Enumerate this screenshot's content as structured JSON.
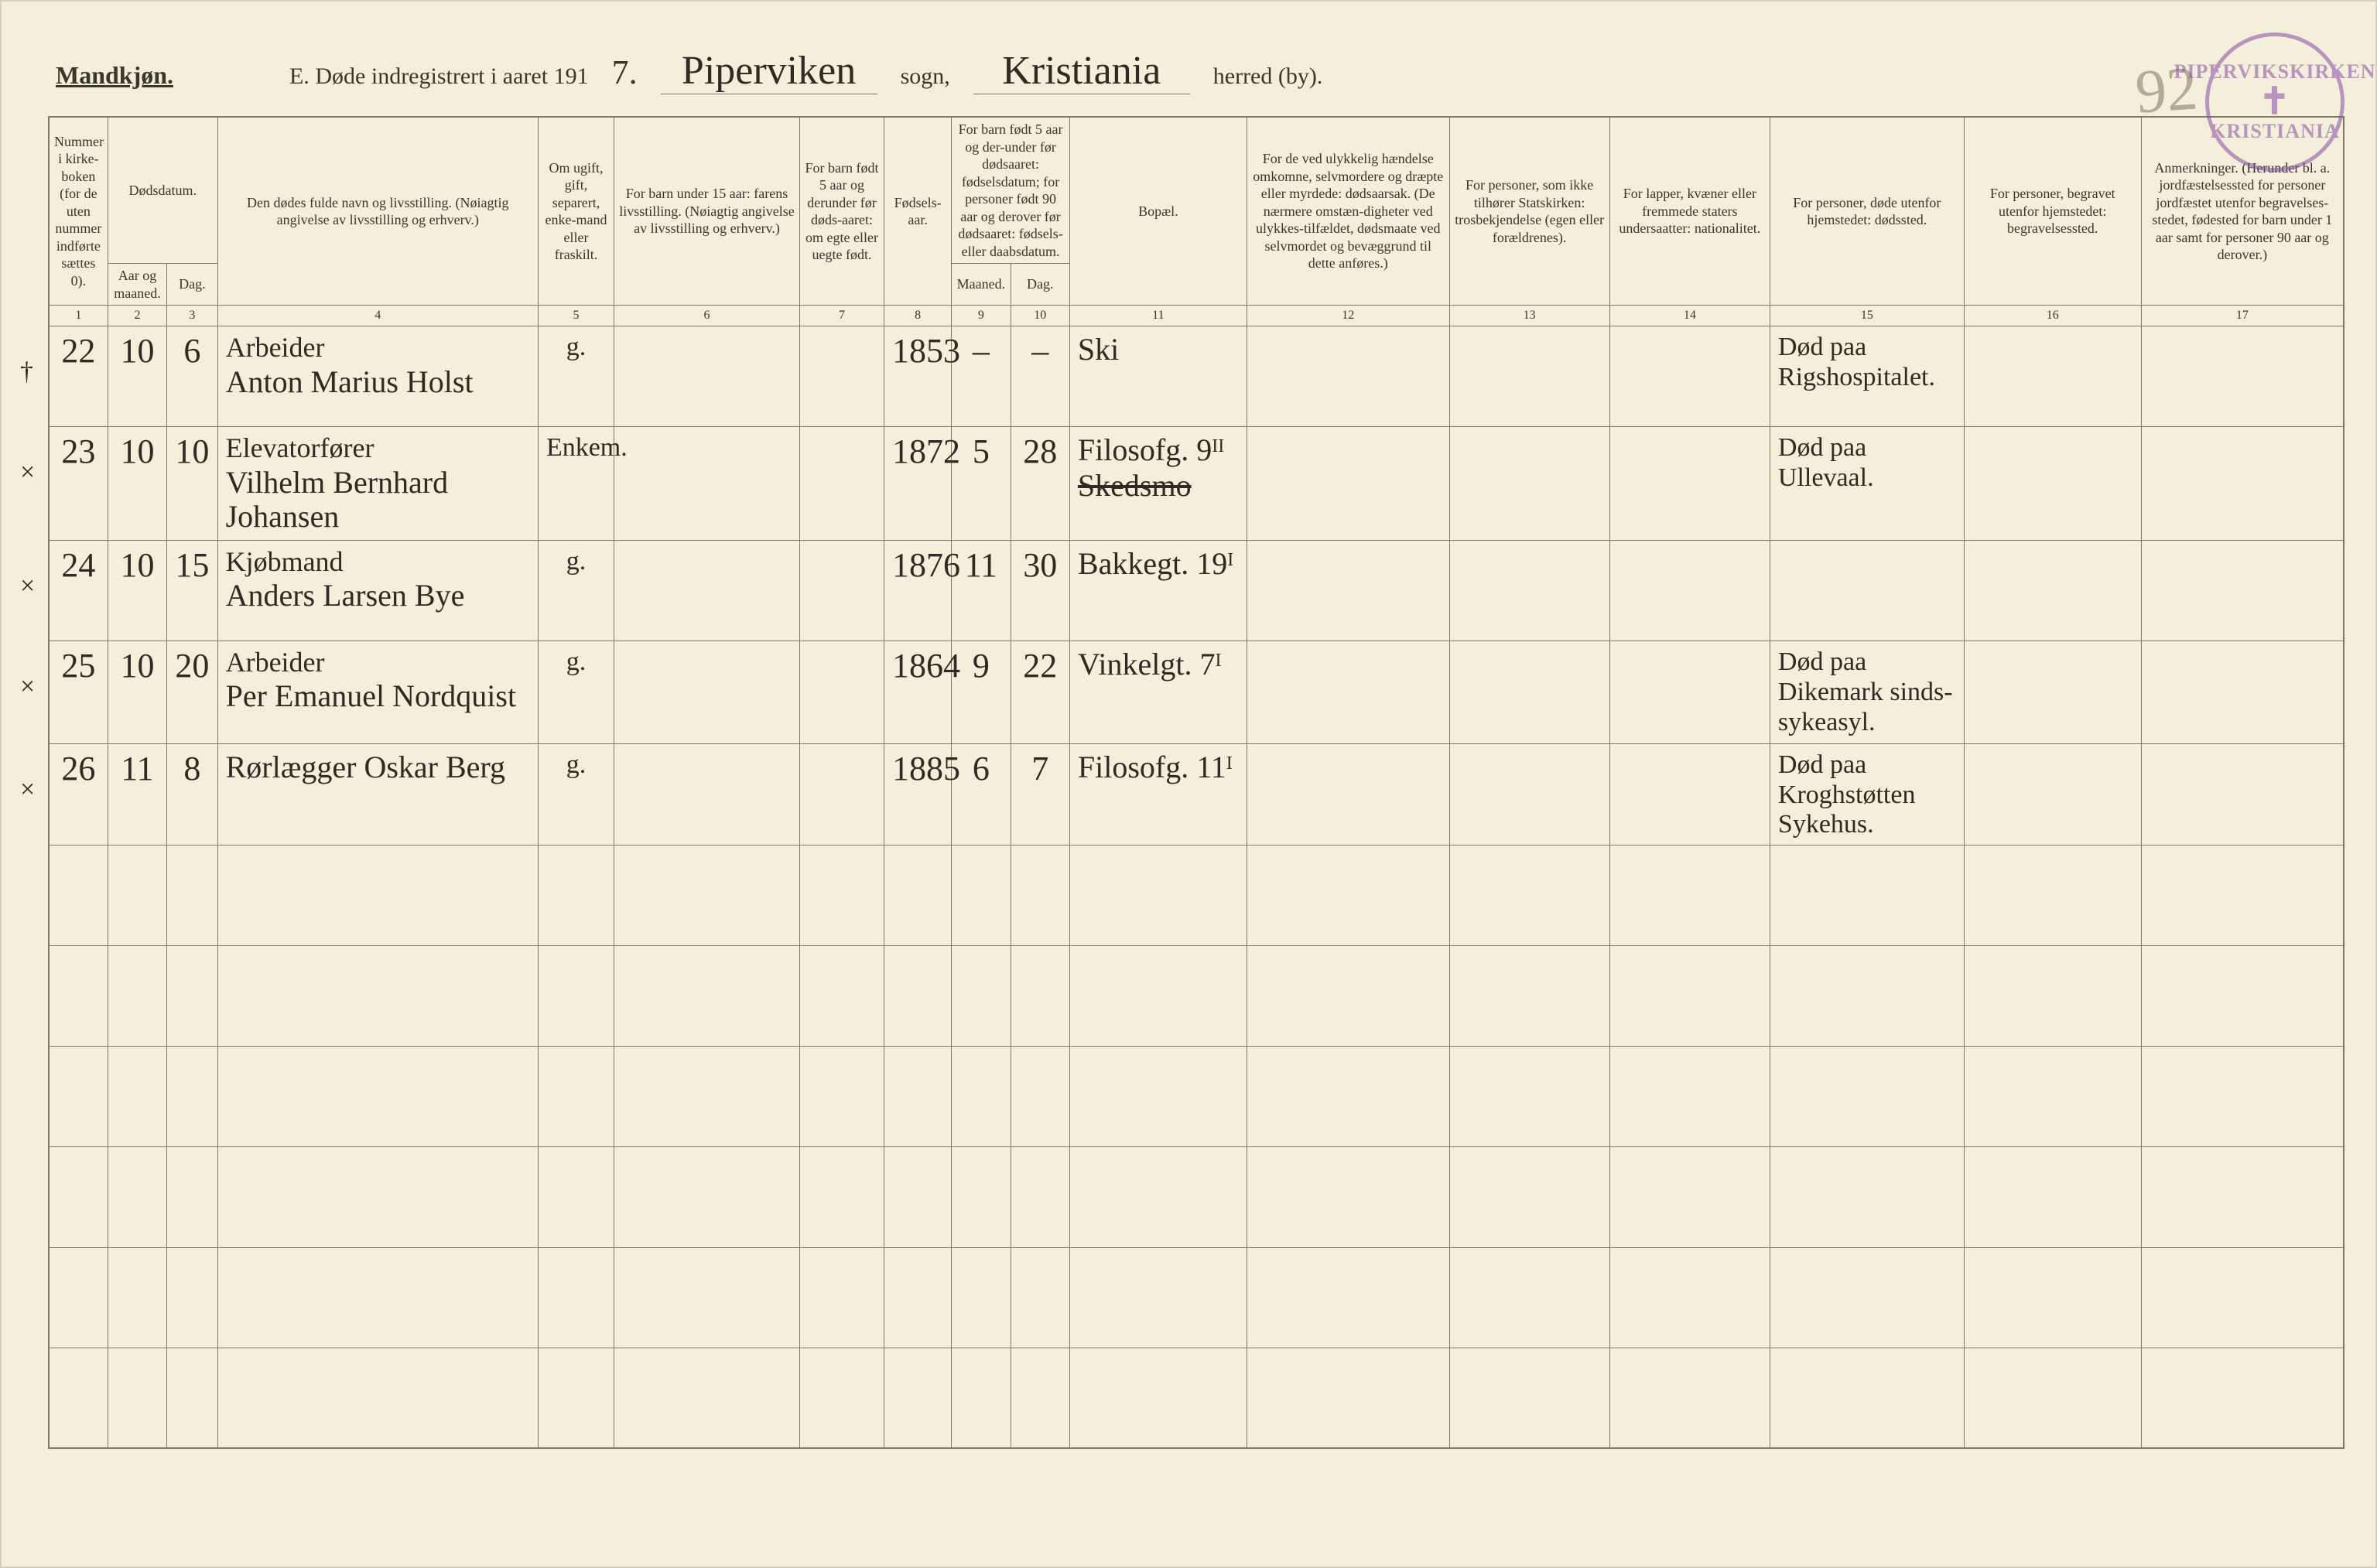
{
  "page_number_handwritten": "92",
  "stamp": {
    "top": "PIPERVIKSKIRKEN",
    "bottom": "KRISTIANIA"
  },
  "header": {
    "gender_label": "Mandkjøn.",
    "title_prefix": "E.   Døde indregistrert i aaret 191",
    "year_suffix": "7.",
    "parish_value": "Piperviken",
    "parish_label": "sogn,",
    "district_value": "Kristiania",
    "district_label": "herred (by)."
  },
  "columns": {
    "c1": "Nummer i kirke-boken (for de uten nummer indførte sættes 0).",
    "c2a": "Dødsdatum.",
    "c2b": "Aar og maaned.",
    "c3": "Dag.",
    "c4": "Den dødes fulde navn og livsstilling.\n(Nøiagtig angivelse av livsstilling og erhverv.)",
    "c5": "Om ugift, gift, separert, enke-mand eller fraskilt.",
    "c6": "For barn under 15 aar:\nfarens livsstilling.\n(Nøiagtig angivelse av livsstilling og erhverv.)",
    "c7": "For barn født 5 aar og derunder før døds-aaret: om egte eller uegte født.",
    "c8": "Fødsels-aar.",
    "c9_10_top": "For barn født 5 aar og der-under før dødsaaret: fødselsdatum; for personer født 90 aar og derover før dødsaaret: fødsels- eller daabsdatum.",
    "c9": "Maaned.",
    "c10": "Dag.",
    "c11": "Bopæl.",
    "c12": "For de ved ulykkelig hændelse omkomne, selvmordere og dræpte eller myrdede: dødsaarsak.\n(De nærmere omstæn-digheter ved ulykkes-tilfældet, dødsmaate ved selvmordet og bevæggrund til dette anføres.)",
    "c13": "For personer, som ikke tilhører Statskirken:\ntrosbekjendelse (egen eller forældrenes).",
    "c14": "For lapper, kvæner eller fremmede staters undersaatter:\nnationalitet.",
    "c15": "For personer, døde utenfor hjemstedet:\ndødssted.",
    "c16": "For personer, begravet utenfor hjemstedet:\nbegravelsessted.",
    "c17": "Anmerkninger.\n(Herunder bl. a. jordfæstelsessted for personer jordfæstet utenfor begravelses-stedet, fødested for barn under 1 aar samt for personer 90 aar og derover.)"
  },
  "colnums": [
    "1",
    "2",
    "3",
    "4",
    "5",
    "6",
    "7",
    "8",
    "9",
    "10",
    "11",
    "12",
    "13",
    "14",
    "15",
    "16",
    "17"
  ],
  "rows": [
    {
      "mark": "†",
      "n": "22",
      "m": "10",
      "d": "6",
      "occ": "Arbeider",
      "name": "Anton Marius Holst",
      "status": "g.",
      "byear": "1853",
      "bm": "–",
      "bd": "–",
      "addr": "Ski",
      "c15a": "Død paa",
      "c15b": "Rigshospitalet."
    },
    {
      "mark": "×",
      "n": "23",
      "m": "10",
      "d": "10",
      "occ": "Elevatorfører",
      "name": "Vilhelm Bernhard Johansen",
      "status": "Enkem.",
      "byear": "1872",
      "bm": "5",
      "bd": "28",
      "addr_top": "Filosofg. 9ᴵᴵ",
      "addr_strike": "Skedsmo",
      "c15a": "Død paa",
      "c15b": "Ullevaal."
    },
    {
      "mark": "×",
      "n": "24",
      "m": "10",
      "d": "15",
      "occ": "Kjøbmand",
      "name": "Anders Larsen Bye",
      "status": "g.",
      "byear": "1876",
      "bm": "11",
      "bd": "30",
      "addr": "Bakkegt. 19ᴵ"
    },
    {
      "mark": "×",
      "n": "25",
      "m": "10",
      "d": "20",
      "occ": "Arbeider",
      "name": "Per Emanuel Nordquist",
      "status": "g.",
      "byear": "1864",
      "bm": "9",
      "bd": "22",
      "addr": "Vinkelgt. 7ᴵ",
      "c15a": "Død paa",
      "c15b": "Dikemark sinds-",
      "c15c": "sykeasyl."
    },
    {
      "mark": "×",
      "n": "26",
      "m": "11",
      "d": "8",
      "occ": "Rørlægger",
      "name": "Oskar Berg",
      "name_inline": true,
      "status": "g.",
      "byear": "1885",
      "bm": "6",
      "bd": "7",
      "addr": "Filosofg. 11ᴵ",
      "c15a": "Død paa",
      "c15b": "Kroghstøtten Sykehus."
    }
  ]
}
